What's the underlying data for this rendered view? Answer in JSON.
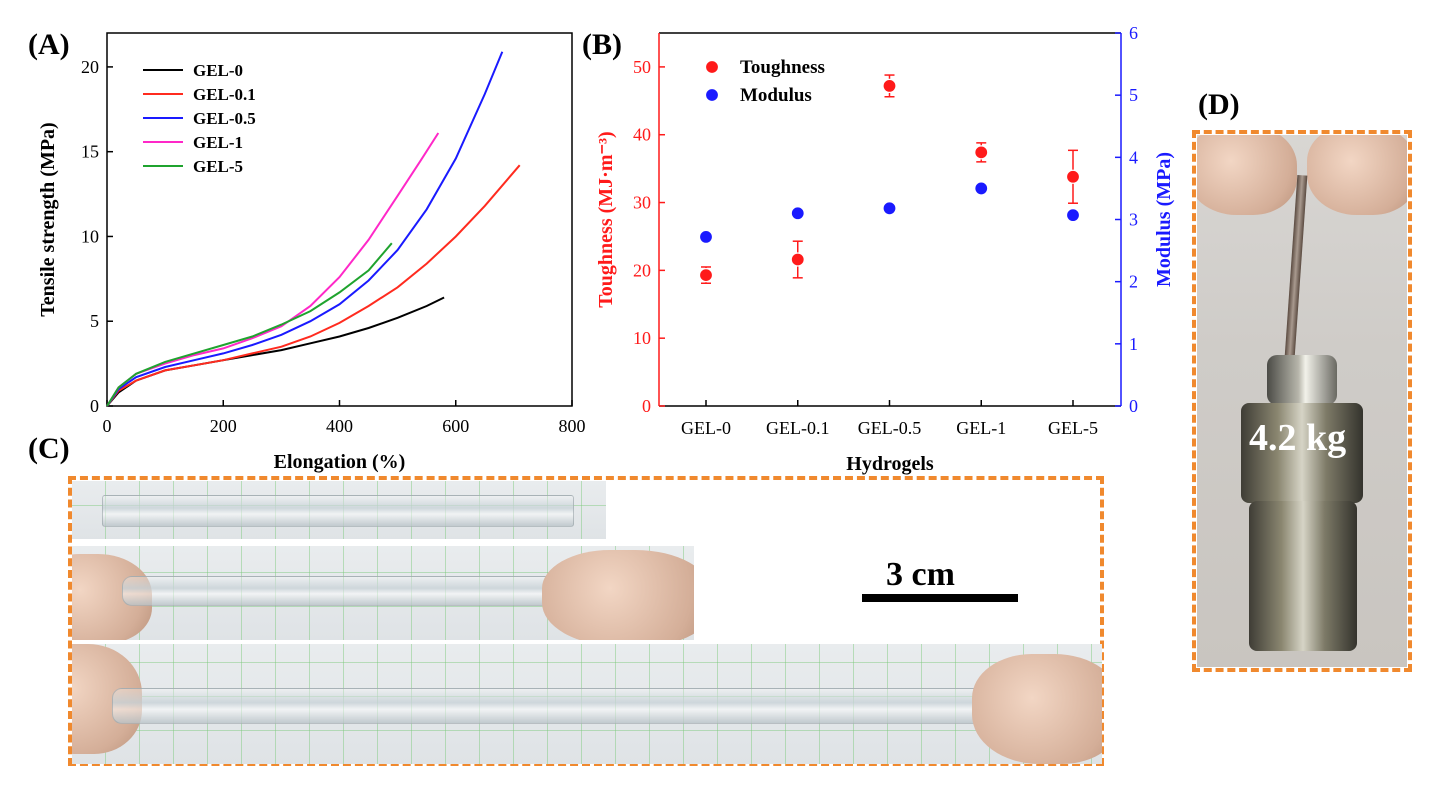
{
  "panels": {
    "a": "(A)",
    "b": "(B)",
    "c": "(C)",
    "d": "(D)"
  },
  "chart_data": [
    {
      "type": "line",
      "xlabel": "Elongation (%)",
      "ylabel": "Tensile strength (MPa)",
      "xlim": [
        0,
        800
      ],
      "ylim": [
        0,
        22
      ],
      "xticks": [
        0,
        200,
        400,
        600,
        800
      ],
      "yticks": [
        0,
        5,
        10,
        15,
        20
      ],
      "legend_position": "top-left",
      "series": [
        {
          "name": "GEL-0",
          "color": "#000000",
          "x": [
            0,
            20,
            50,
            100,
            150,
            200,
            250,
            300,
            350,
            400,
            450,
            500,
            550,
            580
          ],
          "y": [
            0,
            0.8,
            1.5,
            2.1,
            2.4,
            2.7,
            3.0,
            3.3,
            3.7,
            4.1,
            4.6,
            5.2,
            5.9,
            6.4
          ]
        },
        {
          "name": "GEL-0.1",
          "color": "#ff2b1f",
          "x": [
            0,
            20,
            50,
            100,
            150,
            200,
            250,
            300,
            350,
            400,
            450,
            500,
            550,
            600,
            650,
            710
          ],
          "y": [
            0,
            0.9,
            1.5,
            2.1,
            2.4,
            2.7,
            3.1,
            3.5,
            4.1,
            4.9,
            5.9,
            7.0,
            8.4,
            10.0,
            11.8,
            14.2
          ]
        },
        {
          "name": "GEL-0.5",
          "color": "#1a1aff",
          "x": [
            0,
            20,
            50,
            100,
            150,
            200,
            250,
            300,
            350,
            400,
            450,
            500,
            550,
            600,
            650,
            680
          ],
          "y": [
            0,
            1.0,
            1.7,
            2.3,
            2.7,
            3.1,
            3.6,
            4.2,
            5.0,
            6.0,
            7.4,
            9.2,
            11.6,
            14.6,
            18.4,
            20.9
          ]
        },
        {
          "name": "GEL-1",
          "color": "#ff28c8",
          "x": [
            0,
            20,
            50,
            100,
            150,
            200,
            250,
            300,
            350,
            400,
            450,
            500,
            540,
            570
          ],
          "y": [
            0,
            1.1,
            1.9,
            2.5,
            3.0,
            3.4,
            4.0,
            4.7,
            5.9,
            7.6,
            9.8,
            12.4,
            14.5,
            16.1
          ]
        },
        {
          "name": "GEL-5",
          "color": "#1fa32e",
          "x": [
            0,
            20,
            50,
            100,
            150,
            200,
            250,
            300,
            350,
            400,
            450,
            490
          ],
          "y": [
            0,
            1.1,
            1.9,
            2.6,
            3.1,
            3.6,
            4.1,
            4.8,
            5.6,
            6.7,
            8.0,
            9.6
          ]
        }
      ]
    },
    {
      "type": "scatter",
      "xlabel": "Hydrogels",
      "ylabel": "Toughness (MJ·m⁻³)",
      "ylabel_right": "Modulus (MPa)",
      "categories": [
        "GEL-0",
        "GEL-0.1",
        "GEL-0.5",
        "GEL-1",
        "GEL-5"
      ],
      "ylim": [
        0,
        55
      ],
      "ylim_right": [
        0,
        6
      ],
      "yticks": [
        0,
        10,
        20,
        30,
        40,
        50
      ],
      "yticks_right": [
        0,
        1,
        2,
        3,
        4,
        5,
        6
      ],
      "legend_position": "top-left",
      "colors": {
        "left_axis": "#ff1a1a",
        "right_axis": "#1a1aff"
      },
      "series": [
        {
          "name": "Toughness",
          "axis": "left",
          "color": "#ff1a1a",
          "values": [
            19.3,
            21.6,
            47.2,
            37.4,
            33.8
          ],
          "error": [
            1.2,
            2.7,
            1.6,
            1.4,
            3.9
          ]
        },
        {
          "name": "Modulus",
          "axis": "right",
          "color": "#1a1aff",
          "values": [
            2.72,
            3.1,
            3.18,
            3.5,
            3.07
          ]
        }
      ]
    }
  ],
  "photo_c": {
    "scale_label": "3 cm",
    "scale_cm": 3
  },
  "photo_d": {
    "weight_label": "4.2 kg"
  },
  "colors": {
    "dashed_border": "#f0892e"
  }
}
